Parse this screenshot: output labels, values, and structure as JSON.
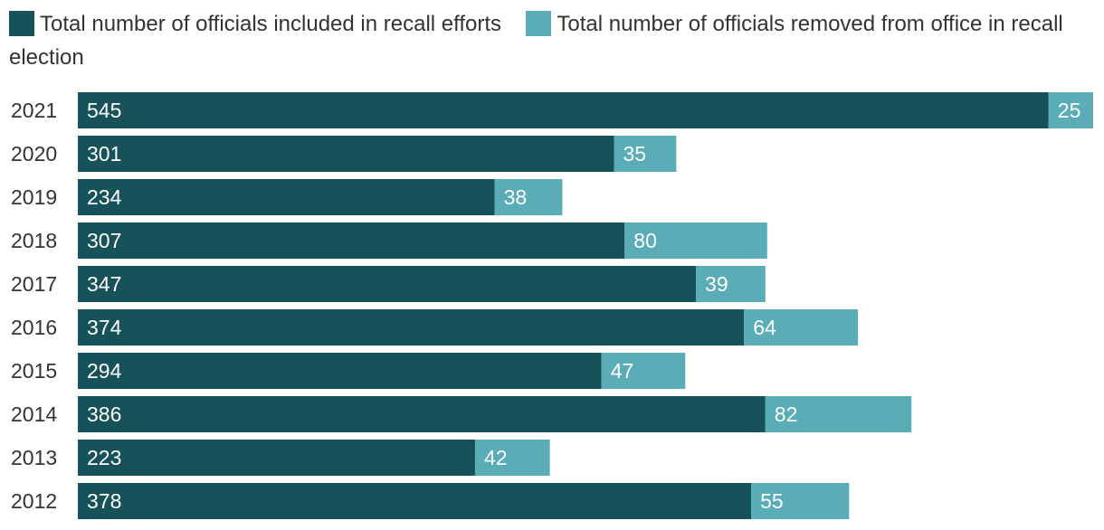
{
  "legend": {
    "included_label": "Total number of officials included in recall efforts",
    "removed_label": "Total number of officials removed from office in recall election"
  },
  "colors": {
    "included": "#17525b",
    "removed": "#5aadb7"
  },
  "chart_data": {
    "type": "bar",
    "orientation": "horizontal",
    "stacked": true,
    "categories": [
      "2021",
      "2020",
      "2019",
      "2018",
      "2017",
      "2016",
      "2015",
      "2014",
      "2013",
      "2012"
    ],
    "series": [
      {
        "name": "Total number of officials included in recall efforts",
        "values": [
          545,
          301,
          234,
          307,
          347,
          374,
          294,
          386,
          223,
          378
        ]
      },
      {
        "name": "Total number of officials removed from office in recall election",
        "values": [
          25,
          35,
          38,
          80,
          39,
          64,
          47,
          82,
          42,
          55
        ]
      }
    ],
    "xlim": [
      0,
      570
    ],
    "grid": false,
    "legend_position": "top-left",
    "title": "",
    "xlabel": "",
    "ylabel": ""
  }
}
